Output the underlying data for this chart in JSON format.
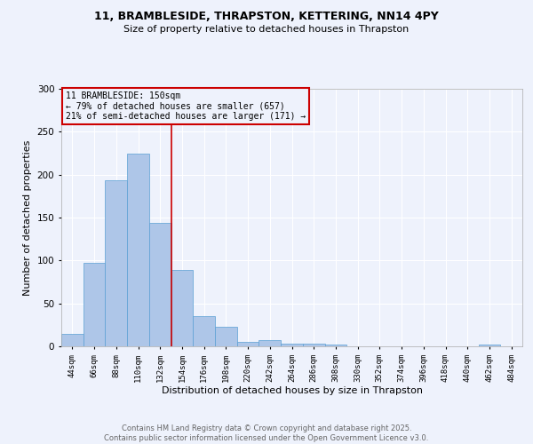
{
  "title": "11, BRAMBLESIDE, THRAPSTON, KETTERING, NN14 4PY",
  "subtitle": "Size of property relative to detached houses in Thrapston",
  "xlabel": "Distribution of detached houses by size in Thrapston",
  "ylabel": "Number of detached properties",
  "bar_values": [
    15,
    97,
    193,
    224,
    144,
    89,
    35,
    23,
    5,
    7,
    3,
    3,
    2,
    0,
    0,
    0,
    0,
    0,
    0,
    2,
    0
  ],
  "bin_labels": [
    "44sqm",
    "66sqm",
    "88sqm",
    "110sqm",
    "132sqm",
    "154sqm",
    "176sqm",
    "198sqm",
    "220sqm",
    "242sqm",
    "264sqm",
    "286sqm",
    "308sqm",
    "330sqm",
    "352sqm",
    "374sqm",
    "396sqm",
    "418sqm",
    "440sqm",
    "462sqm",
    "484sqm"
  ],
  "bar_color": "#aec6e8",
  "bar_edge_color": "#5a9fd4",
  "property_line_color": "#cc0000",
  "annotation_box_text": "11 BRAMBLESIDE: 150sqm\n← 79% of detached houses are smaller (657)\n21% of semi-detached houses are larger (171) →",
  "annotation_box_color": "#cc0000",
  "bg_color": "#eef2fc",
  "grid_color": "#ffffff",
  "footer_line1": "Contains HM Land Registry data © Crown copyright and database right 2025.",
  "footer_line2": "Contains public sector information licensed under the Open Government Licence v3.0.",
  "ylim": [
    0,
    300
  ],
  "yticks": [
    0,
    50,
    100,
    150,
    200,
    250,
    300
  ],
  "property_bin_index": 5
}
